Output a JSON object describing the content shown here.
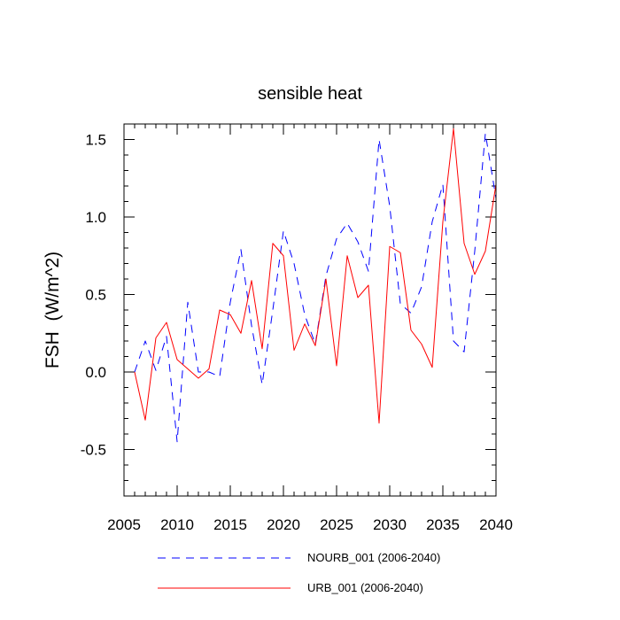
{
  "chart_data": {
    "type": "line",
    "title": "sensible heat",
    "xlabel": "",
    "ylabel": "FSH  (W/m^2)",
    "xlim": [
      2005,
      2040
    ],
    "ylim": [
      -0.8,
      1.6
    ],
    "x_ticks": [
      2005,
      2010,
      2015,
      2020,
      2025,
      2030,
      2035,
      2040
    ],
    "x_tick_labels": [
      "2005",
      "2010",
      "2015",
      "2020",
      "2025",
      "2030",
      "2035",
      "2040"
    ],
    "y_ticks": [
      -0.5,
      0.0,
      0.5,
      1.0,
      1.5
    ],
    "y_tick_labels": [
      "-0.5",
      "0.0",
      "0.5",
      "1.0",
      "1.5"
    ],
    "x": [
      2006,
      2007,
      2008,
      2009,
      2010,
      2011,
      2012,
      2013,
      2014,
      2015,
      2016,
      2017,
      2018,
      2019,
      2020,
      2021,
      2022,
      2023,
      2024,
      2025,
      2026,
      2027,
      2028,
      2029,
      2030,
      2031,
      2032,
      2033,
      2034,
      2035,
      2036,
      2037,
      2038,
      2039,
      2040
    ],
    "series": [
      {
        "name": "NOURB_001 (2006-2040)",
        "style": "dashed",
        "color": "#0000ff",
        "values": [
          0.0,
          0.2,
          0.01,
          0.23,
          -0.45,
          0.45,
          0.0,
          0.0,
          -0.03,
          0.45,
          0.79,
          0.3,
          -0.08,
          0.4,
          0.91,
          0.7,
          0.37,
          0.18,
          0.62,
          0.86,
          0.96,
          0.84,
          0.65,
          1.5,
          1.07,
          0.44,
          0.38,
          0.55,
          0.97,
          1.21,
          0.2,
          0.13,
          0.78,
          1.54,
          1.12
        ]
      },
      {
        "name": "URB_001 (2006-2040)",
        "style": "solid",
        "color": "#ff0000",
        "values": [
          0.0,
          -0.31,
          0.22,
          0.32,
          0.08,
          0.02,
          -0.04,
          0.02,
          0.4,
          0.37,
          0.25,
          0.59,
          0.15,
          0.83,
          0.75,
          0.14,
          0.31,
          0.17,
          0.6,
          0.04,
          0.75,
          0.48,
          0.56,
          -0.33,
          0.81,
          0.77,
          0.27,
          0.18,
          0.03,
          0.97,
          1.57,
          0.83,
          0.63,
          0.78,
          1.21
        ]
      }
    ],
    "legend_position": "bottom"
  }
}
